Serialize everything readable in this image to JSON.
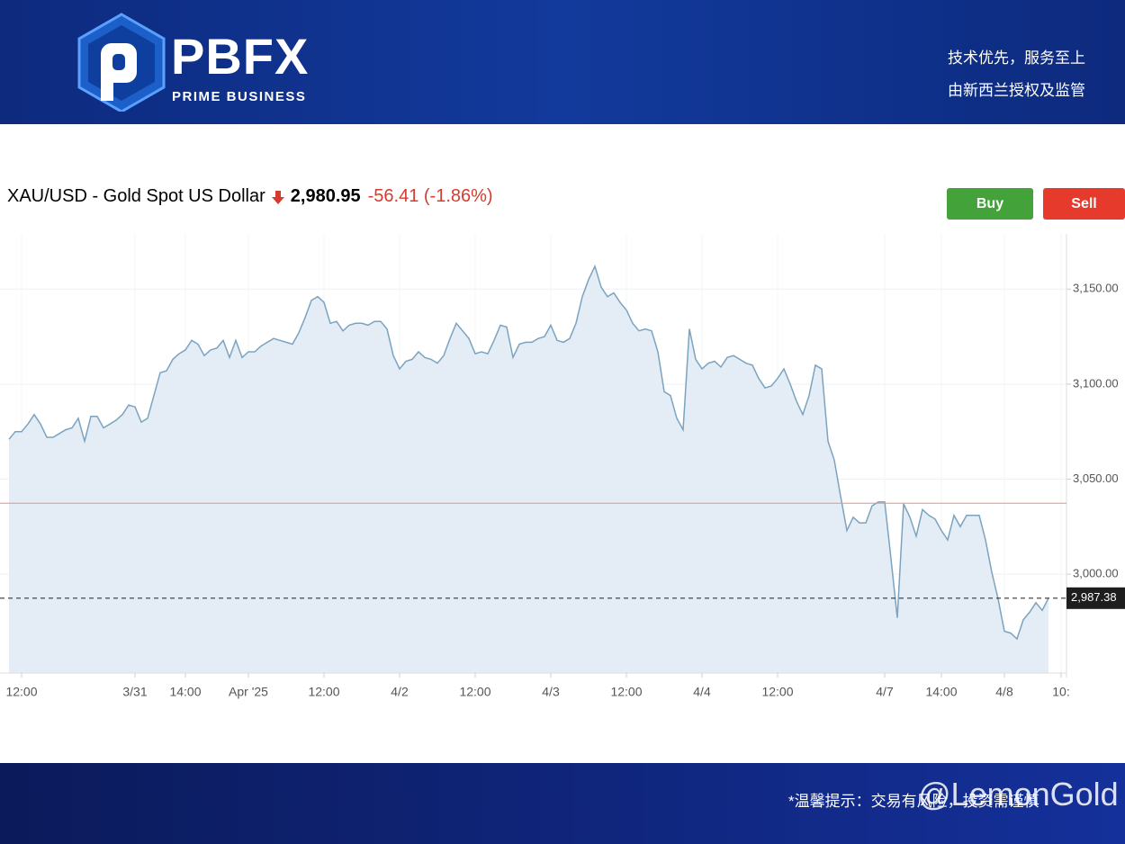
{
  "header": {
    "logo_text": "PBFX",
    "logo_subtitle": "PRIME BUSINESS",
    "slogan_1": "技术优先，服务至上",
    "slogan_2": "由新西兰授权及监管"
  },
  "quote": {
    "symbol": "XAU/USD - Gold Spot US Dollar",
    "price": "2,980.95",
    "change": "-56.41 (-1.86%)"
  },
  "buttons": {
    "buy": "Buy",
    "sell": "Sell"
  },
  "footer": {
    "notice": "*温馨提示：交易有风险，投资需谨慎",
    "watermark": "@LemonGold"
  },
  "chart_data": {
    "type": "line",
    "color": "#7ba3c0",
    "fill_color": "#e4edf5",
    "categories": [
      null,
      null,
      "12:00",
      null,
      null,
      null,
      null,
      null,
      null,
      null,
      null,
      null,
      null,
      null,
      null,
      null,
      null,
      null,
      null,
      null,
      "3/31",
      null,
      null,
      null,
      null,
      null,
      null,
      null,
      "14:00",
      null,
      null,
      null,
      null,
      null,
      null,
      null,
      null,
      null,
      "Apr '25",
      null,
      null,
      null,
      null,
      null,
      null,
      null,
      null,
      null,
      null,
      null,
      "12:00",
      null,
      null,
      null,
      null,
      null,
      null,
      null,
      null,
      null,
      null,
      null,
      "4/2",
      null,
      null,
      null,
      null,
      null,
      null,
      null,
      null,
      null,
      null,
      null,
      "12:00",
      null,
      null,
      null,
      null,
      null,
      null,
      null,
      null,
      null,
      null,
      null,
      "4/3",
      null,
      null,
      null,
      null,
      null,
      null,
      null,
      null,
      null,
      null,
      null,
      "12:00",
      null,
      null,
      null,
      null,
      null,
      null,
      null,
      null,
      null,
      null,
      null,
      "4/4",
      null,
      null,
      null,
      null,
      null,
      null,
      null,
      null,
      null,
      null,
      null,
      "12:00",
      null,
      null,
      null,
      null,
      null,
      null,
      null,
      null,
      null,
      null,
      null,
      null,
      null,
      null,
      null,
      null,
      "4/7",
      null,
      null,
      null,
      null,
      null,
      null,
      null,
      null,
      "14:00",
      null,
      null,
      null,
      null,
      null,
      null,
      null,
      null,
      null,
      "4/8",
      null,
      null,
      null,
      null,
      null,
      null,
      null,
      null,
      "10:"
    ],
    "values": [
      3071,
      3075,
      3075,
      3079,
      3084,
      3079,
      3072,
      3072,
      3074,
      3076,
      3077,
      3082,
      3070,
      3083,
      3083,
      3077,
      3079,
      3081,
      3084,
      3089,
      3088,
      3080,
      3082,
      3094,
      3106,
      3107,
      3113,
      3116,
      3118,
      3123,
      3121,
      3115,
      3118,
      3119,
      3123,
      3114,
      3123,
      3114,
      3117,
      3117,
      3120,
      3122,
      3124,
      3123,
      3122,
      3121,
      3127,
      3135,
      3144,
      3146,
      3143,
      3132,
      3133,
      3128,
      3131,
      3132,
      3132,
      3131,
      3133,
      3133,
      3129,
      3115,
      3108,
      3112,
      3113,
      3117,
      3114,
      3113,
      3111,
      3115,
      3124,
      3132,
      3128,
      3124,
      3116,
      3117,
      3116,
      3123,
      3131,
      3130,
      3114,
      3121,
      3122,
      3122,
      3124,
      3125,
      3131,
      3123,
      3122,
      3124,
      3132,
      3146,
      3155,
      3162,
      3151,
      3146,
      3148,
      3143,
      3139,
      3132,
      3128,
      3129,
      3128,
      3117,
      3096,
      3094,
      3082,
      3076,
      3129,
      3113,
      3108,
      3111,
      3112,
      3109,
      3114,
      3115,
      3113,
      3111,
      3110,
      3103,
      3098,
      3099,
      3103,
      3108,
      3100,
      3091,
      3084,
      3094,
      3110,
      3108,
      3070,
      3060,
      3041,
      3023,
      3030,
      3027,
      3027,
      3036,
      3038,
      3038,
      3008,
      2977,
      3037,
      3030,
      3020,
      3034,
      3031,
      3029,
      3023,
      3018,
      3031,
      3025,
      3031,
      3031,
      3031,
      3018,
      3001,
      2987,
      2970,
      2969,
      2966,
      2976,
      2980,
      2985,
      2981,
      2987.38,
      null,
      null
    ],
    "ylim": [
      2948,
      3179
    ],
    "yticks": [
      {
        "value": 3000,
        "label": "3,000.00"
      },
      {
        "value": 3050,
        "label": "3,050.00"
      },
      {
        "value": 3100,
        "label": "3,100.00"
      },
      {
        "value": 3150,
        "label": "3,150.00"
      }
    ],
    "reference_line": {
      "value": 3037.36,
      "color": "#e8908a"
    },
    "current_line": {
      "value": 2987.38,
      "label": "2,987.38"
    },
    "grid": true
  }
}
